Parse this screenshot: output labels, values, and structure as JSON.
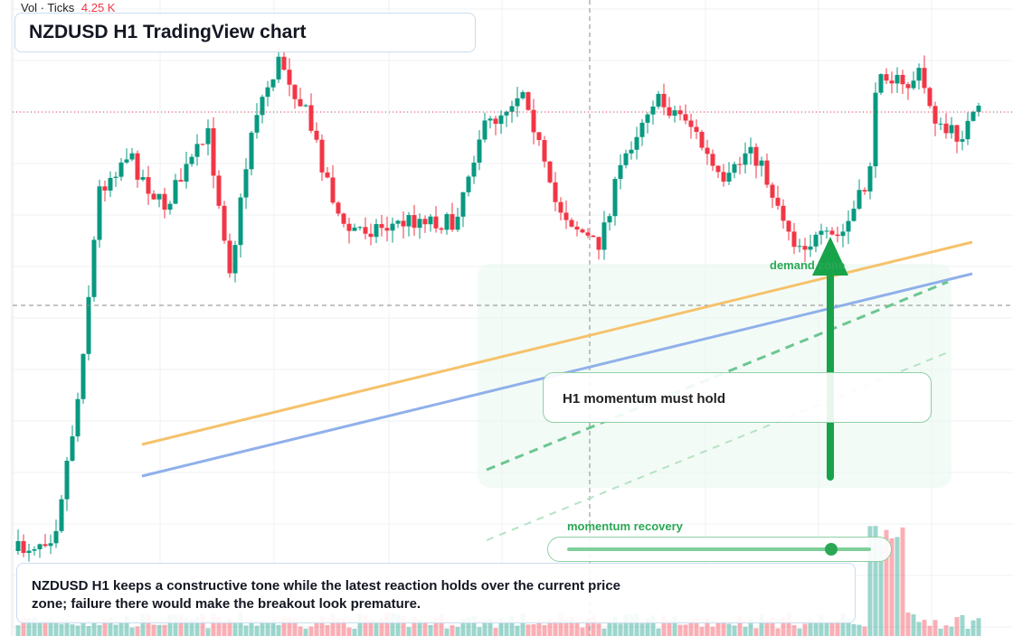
{
  "header": {
    "indicator": "Vol · Ticks",
    "volume": "4.25 K",
    "title": "NZDUSD H1 TradingView chart"
  },
  "annotations": {
    "zone": "demand zone",
    "note": "H1 momentum must hold",
    "slider": "momentum recovery"
  },
  "caption": "NZDUSD H1 keeps a constructive tone while the latest reaction holds over the current price zone; failure there would make the breakout look premature."
}
